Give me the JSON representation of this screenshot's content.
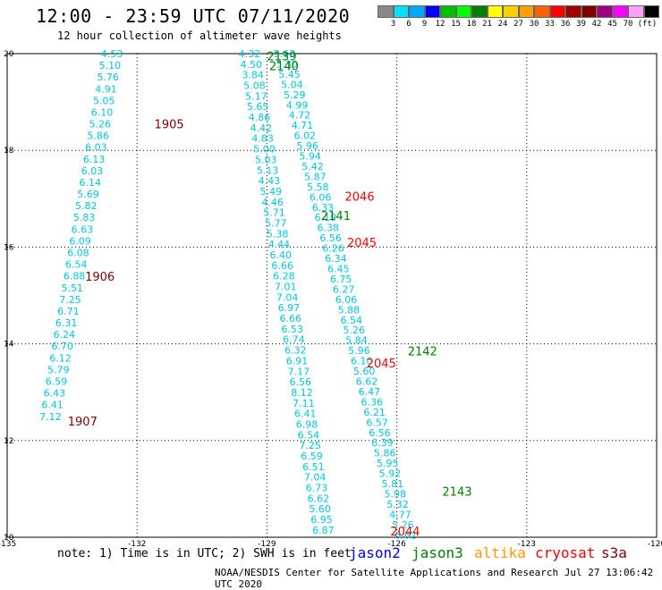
{
  "header": {
    "title": "12:00 - 23:59 UTC 07/11/2020",
    "subtitle": "12 hour collection of altimeter wave heights"
  },
  "colorbar": {
    "colors": [
      "#888888",
      "#00e0ff",
      "#00a8ff",
      "#0000ff",
      "#00c000",
      "#00ff00",
      "#008000",
      "#ffff00",
      "#ffd000",
      "#ffa000",
      "#ff6000",
      "#ff0000",
      "#a00000",
      "#800000",
      "#a00080",
      "#ff00ff",
      "#ffa0ff",
      "#000000"
    ],
    "labels": [
      "3",
      "6",
      "9",
      "12",
      "15",
      "18",
      "21",
      "24",
      "27",
      "30",
      "33",
      "36",
      "39",
      "42",
      "45",
      "70",
      "(ft)"
    ]
  },
  "axes": {
    "x_ticks": [
      "-135",
      "-132",
      "-129",
      "-126",
      "-123",
      "-120"
    ],
    "y_ticks": [
      "20",
      "18",
      "16",
      "14",
      "12",
      "10"
    ]
  },
  "chart_data": {
    "type": "scatter",
    "xlim": [
      -135,
      -120
    ],
    "ylim": [
      10,
      20
    ],
    "units": "ft",
    "tracks": [
      {
        "lon0": -132.58,
        "lat0": 20.0,
        "lon1": -134.0,
        "lat1": 12.5,
        "values": [
          "4.53",
          "5.10",
          "5.76",
          "4.91",
          "5.05",
          "6.10",
          "5.26",
          "5.86",
          "6.03",
          "6.13",
          "6.03",
          "6.14",
          "5.69",
          "5.82",
          "5.83",
          "6.63",
          "6.09",
          "6.08",
          "6.54",
          "6.88",
          "5.51",
          "7.25",
          "6.71",
          "6.31",
          "6.24",
          "6.70",
          "6.12",
          "5.79",
          "6.59",
          "6.43",
          "6.41",
          "7.12"
        ]
      },
      {
        "lon0": -129.4,
        "lat0": 20.0,
        "lon1": -127.7,
        "lat1": 10.15,
        "values": [
          "4.32",
          "4.50",
          "3.84",
          "5.08",
          "5.17",
          "5.65",
          "4.86",
          "4.42",
          "4.83",
          "5.00",
          "5.03",
          "5.13",
          "4.43",
          "5.49",
          "4.46",
          "5.71",
          "5.77",
          "5.38",
          "4.44",
          "6.40",
          "6.66",
          "6.28",
          "7.01",
          "7.04",
          "6.97",
          "6.66",
          "6.53",
          "6.74",
          "6.32",
          "6.91",
          "7.17",
          "6.56",
          "8.12",
          "7.11",
          "6.41",
          "6.98",
          "6.54",
          "7.25",
          "6.59",
          "6.51",
          "7.04",
          "6.73",
          "6.62",
          "5.60",
          "6.95",
          "6.87"
        ]
      },
      {
        "lon0": -128.6,
        "lat0": 20.0,
        "lon1": -125.8,
        "lat1": 10.05,
        "values": [
          "5.63",
          "5.30",
          "5.45",
          "5.04",
          "5.29",
          "4.99",
          "4.72",
          "4.71",
          "6.02",
          "5.96",
          "5.94",
          "5.42",
          "5.87",
          "5.58",
          "6.06",
          "6.33",
          "6.19",
          "6.38",
          "6.56",
          "6.26",
          "6.34",
          "6.45",
          "6.75",
          "6.27",
          "6.06",
          "5.88",
          "6.54",
          "5.26",
          "5.84",
          "5.96",
          "6.10",
          "5.60",
          "6.62",
          "6.47",
          "6.36",
          "6.21",
          "6.57",
          "6.56",
          "6.39",
          "5.86",
          "5.95",
          "5.92",
          "5.81",
          "5.98",
          "5.32",
          "4.77",
          "5.26",
          "6.62"
        ]
      }
    ],
    "pass_labels": [
      {
        "text": "2139",
        "lon": -129.0,
        "lat": 19.95,
        "color": "#008000"
      },
      {
        "text": "2140",
        "lon": -128.95,
        "lat": 19.75,
        "color": "#008000"
      },
      {
        "text": "1905",
        "lon": -131.6,
        "lat": 18.55,
        "color": "#800000"
      },
      {
        "text": "2046",
        "lon": -127.2,
        "lat": 17.05,
        "color": "#ff0000"
      },
      {
        "text": "2141",
        "lon": -127.75,
        "lat": 16.65,
        "color": "#008000"
      },
      {
        "text": "2045",
        "lon": -127.15,
        "lat": 16.1,
        "color": "#ff0000"
      },
      {
        "text": "1906",
        "lon": -133.2,
        "lat": 15.4,
        "color": "#800000"
      },
      {
        "text": "2142",
        "lon": -125.75,
        "lat": 13.85,
        "color": "#008000"
      },
      {
        "text": "2045",
        "lon": -126.7,
        "lat": 13.6,
        "color": "#ff0000"
      },
      {
        "text": "1907",
        "lon": -133.6,
        "lat": 12.4,
        "color": "#800000"
      },
      {
        "text": "2143",
        "lon": -124.95,
        "lat": 10.95,
        "color": "#008000"
      },
      {
        "text": "2044",
        "lon": -126.15,
        "lat": 10.13,
        "color": "#ff0000"
      }
    ]
  },
  "footer": {
    "note": "note:  1) Time is in UTC; 2) SWH is in feet",
    "credit": "NOAA/NESDIS Center for Satellite Applications and Research    Jul 27 13:06:42 UTC 2020",
    "satellites": [
      {
        "name": "jason2",
        "color": "#0000ff"
      },
      {
        "name": "jason3",
        "color": "#008000"
      },
      {
        "name": "altika",
        "color": "#ff9900"
      },
      {
        "name": "cryosat",
        "color": "#ff0000"
      },
      {
        "name": "s3a",
        "color": "#800000"
      }
    ]
  }
}
